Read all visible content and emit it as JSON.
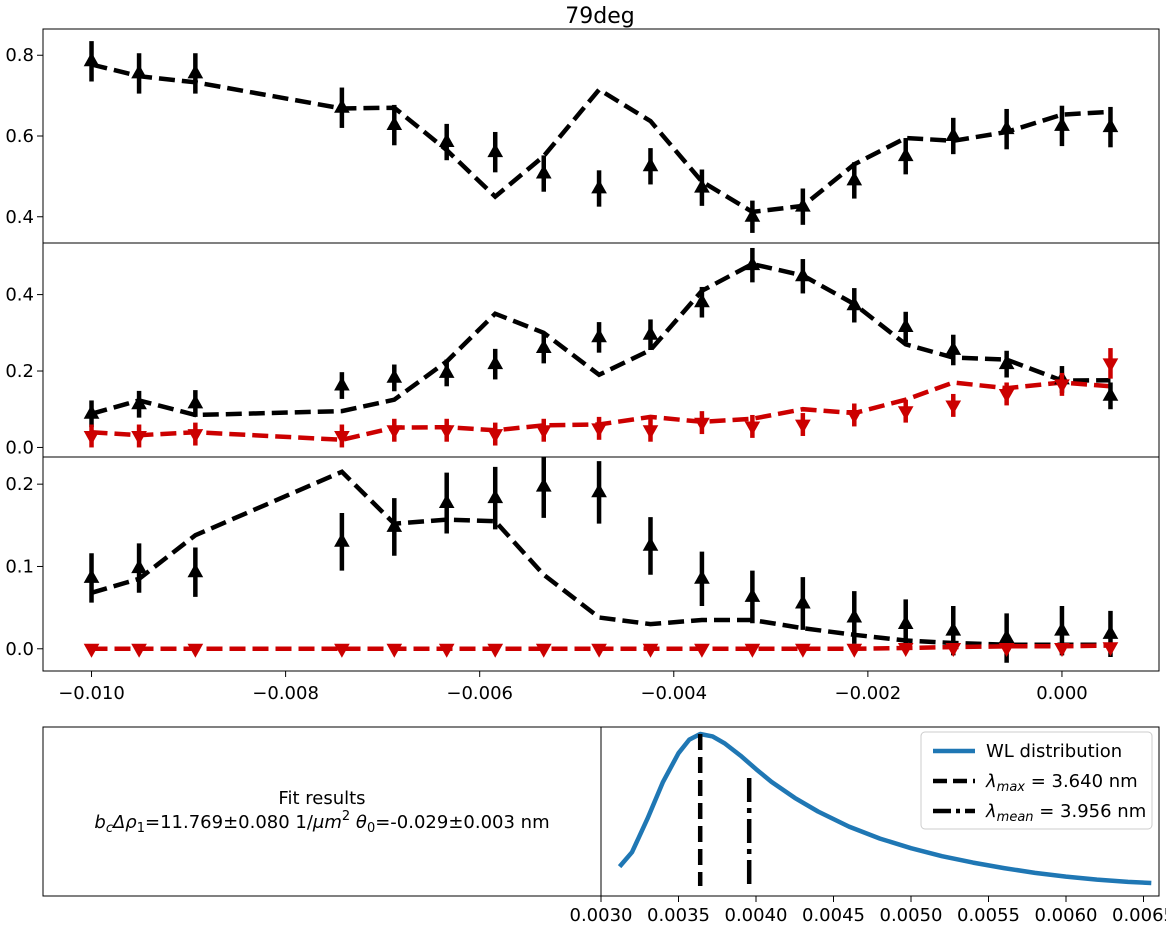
{
  "chart_data": [
    {
      "type": "line",
      "panel": "top",
      "title": "79deg",
      "xlim": [
        -0.0105,
        0.001
      ],
      "ylim": [
        0.335,
        0.865
      ],
      "yticks": [
        0.4,
        0.6,
        0.8
      ],
      "ytick_labels": [
        "0.4",
        "0.6",
        "0.8"
      ],
      "series": [
        {
          "style": "black-triangle-up-errorbar",
          "color": "#000000",
          "x": [
            -0.01,
            -0.00951,
            -0.00893,
            -0.00742,
            -0.00688,
            -0.00634,
            -0.00584,
            -0.00534,
            -0.00477,
            -0.00424,
            -0.00371,
            -0.00319,
            -0.00267,
            -0.00214,
            -0.00161,
            -0.00112,
            -0.00057,
            0.0,
            0.0005
          ],
          "y": [
            0.785,
            0.755,
            0.755,
            0.67,
            0.627,
            0.585,
            0.56,
            0.507,
            0.47,
            0.525,
            0.472,
            0.4,
            0.425,
            0.49,
            0.55,
            0.6,
            0.617,
            0.625,
            0.622
          ],
          "yerr": [
            0.05,
            0.05,
            0.05,
            0.05,
            0.05,
            0.045,
            0.05,
            0.045,
            0.045,
            0.045,
            0.045,
            0.04,
            0.045,
            0.045,
            0.045,
            0.045,
            0.05,
            0.05,
            0.05
          ]
        },
        {
          "style": "black-dashed-line",
          "color": "#000000",
          "x": [
            -0.01,
            -0.00951,
            -0.00893,
            -0.00742,
            -0.00688,
            -0.00634,
            -0.00584,
            -0.00534,
            -0.00477,
            -0.00424,
            -0.00371,
            -0.00319,
            -0.00267,
            -0.00214,
            -0.00161,
            -0.00112,
            -0.00057,
            0.0,
            0.0005
          ],
          "y": [
            0.777,
            0.748,
            0.733,
            0.668,
            0.67,
            0.565,
            0.45,
            0.55,
            0.715,
            0.637,
            0.487,
            0.412,
            0.427,
            0.53,
            0.595,
            0.588,
            0.61,
            0.653,
            0.66
          ]
        }
      ]
    },
    {
      "type": "line",
      "panel": "middle",
      "xlim": [
        -0.0105,
        0.001
      ],
      "ylim": [
        -0.025,
        0.535
      ],
      "yticks": [
        0.0,
        0.2,
        0.4
      ],
      "ytick_labels": [
        "0.0",
        "0.2",
        "0.4"
      ],
      "series": [
        {
          "style": "black-triangle-up-errorbar",
          "color": "#000000",
          "x": [
            -0.01,
            -0.00951,
            -0.00893,
            -0.00742,
            -0.00688,
            -0.00634,
            -0.00584,
            -0.00534,
            -0.00477,
            -0.00424,
            -0.00371,
            -0.00319,
            -0.00267,
            -0.00214,
            -0.00161,
            -0.00112,
            -0.00057,
            0.0,
            0.0005
          ],
          "y": [
            0.088,
            0.113,
            0.115,
            0.162,
            0.182,
            0.195,
            0.218,
            0.26,
            0.288,
            0.295,
            0.38,
            0.477,
            0.448,
            0.372,
            0.315,
            0.255,
            0.218,
            0.178,
            0.135
          ],
          "yerr": [
            0.035,
            0.035,
            0.035,
            0.035,
            0.035,
            0.035,
            0.04,
            0.04,
            0.04,
            0.04,
            0.04,
            0.045,
            0.045,
            0.045,
            0.04,
            0.04,
            0.035,
            0.035,
            0.035
          ]
        },
        {
          "style": "black-dashed-line",
          "color": "#000000",
          "x": [
            -0.01,
            -0.00951,
            -0.00893,
            -0.00742,
            -0.00688,
            -0.00634,
            -0.00584,
            -0.00534,
            -0.00477,
            -0.00424,
            -0.00371,
            -0.00319,
            -0.00267,
            -0.00214,
            -0.00161,
            -0.00112,
            -0.00057,
            0.0,
            0.0005
          ],
          "y": [
            0.088,
            0.123,
            0.085,
            0.095,
            0.125,
            0.225,
            0.35,
            0.3,
            0.19,
            0.255,
            0.41,
            0.48,
            0.45,
            0.375,
            0.27,
            0.235,
            0.23,
            0.175,
            0.176
          ]
        },
        {
          "style": "red-triangle-down-errorbar",
          "color": "#cc0000",
          "x": [
            -0.01,
            -0.00951,
            -0.00893,
            -0.00742,
            -0.00688,
            -0.00634,
            -0.00584,
            -0.00534,
            -0.00477,
            -0.00424,
            -0.00371,
            -0.00319,
            -0.00267,
            -0.00214,
            -0.00161,
            -0.00112,
            -0.00057,
            0.0,
            0.0005
          ],
          "y": [
            0.03,
            0.03,
            0.035,
            0.03,
            0.045,
            0.045,
            0.035,
            0.045,
            0.05,
            0.045,
            0.065,
            0.055,
            0.06,
            0.085,
            0.095,
            0.11,
            0.14,
            0.165,
            0.22
          ],
          "yerr": [
            0.03,
            0.03,
            0.03,
            0.03,
            0.03,
            0.03,
            0.03,
            0.03,
            0.03,
            0.03,
            0.03,
            0.03,
            0.03,
            0.03,
            0.03,
            0.03,
            0.03,
            0.03,
            0.04
          ]
        },
        {
          "style": "red-dashed-line",
          "color": "#cc0000",
          "x": [
            -0.01,
            -0.00951,
            -0.00893,
            -0.00742,
            -0.00688,
            -0.00634,
            -0.00584,
            -0.00534,
            -0.00477,
            -0.00424,
            -0.00371,
            -0.00319,
            -0.00267,
            -0.00214,
            -0.00161,
            -0.00112,
            -0.00057,
            0.0,
            0.0005
          ],
          "y": [
            0.04,
            0.032,
            0.04,
            0.02,
            0.052,
            0.053,
            0.045,
            0.058,
            0.06,
            0.08,
            0.067,
            0.075,
            0.1,
            0.09,
            0.125,
            0.17,
            0.155,
            0.17,
            0.16
          ]
        }
      ]
    },
    {
      "type": "line",
      "panel": "bottom",
      "xlim": [
        -0.0105,
        0.001
      ],
      "ylim": [
        -0.027,
        0.233
      ],
      "yticks": [
        0.0,
        0.1,
        0.2
      ],
      "ytick_labels": [
        "0.0",
        "0.1",
        "0.2"
      ],
      "xticks": [
        -0.01,
        -0.008,
        -0.006,
        -0.004,
        -0.002,
        0.0
      ],
      "xtick_labels": [
        "−0.010",
        "−0.008",
        "−0.006",
        "−0.004",
        "−0.002",
        "0.000"
      ],
      "series": [
        {
          "style": "black-triangle-up-errorbar",
          "color": "#000000",
          "x": [
            -0.01,
            -0.00951,
            -0.00893,
            -0.00742,
            -0.00688,
            -0.00634,
            -0.00584,
            -0.00534,
            -0.00477,
            -0.00424,
            -0.00371,
            -0.00319,
            -0.00267,
            -0.00214,
            -0.00161,
            -0.00112,
            -0.00057,
            0.0,
            0.0005
          ],
          "y": [
            0.086,
            0.098,
            0.093,
            0.13,
            0.148,
            0.177,
            0.183,
            0.197,
            0.19,
            0.125,
            0.085,
            0.063,
            0.055,
            0.038,
            0.03,
            0.022,
            0.013,
            0.022,
            0.018
          ],
          "yerr": [
            0.03,
            0.03,
            0.03,
            0.035,
            0.035,
            0.037,
            0.038,
            0.038,
            0.038,
            0.035,
            0.033,
            0.032,
            0.032,
            0.032,
            0.03,
            0.03,
            0.03,
            0.03,
            0.028
          ]
        },
        {
          "style": "black-dashed-line",
          "color": "#000000",
          "x": [
            -0.01,
            -0.00951,
            -0.00893,
            -0.00742,
            -0.00688,
            -0.00634,
            -0.00584,
            -0.00534,
            -0.00477,
            -0.00424,
            -0.00371,
            -0.00319,
            -0.00267,
            -0.00214,
            -0.00161,
            -0.00112,
            -0.00057,
            0.0,
            0.0005
          ],
          "y": [
            0.068,
            0.085,
            0.138,
            0.215,
            0.152,
            0.157,
            0.155,
            0.09,
            0.038,
            0.03,
            0.035,
            0.035,
            0.025,
            0.017,
            0.01,
            0.007,
            0.005,
            0.005,
            0.005
          ]
        },
        {
          "style": "red-triangle-down-errorbar",
          "color": "#cc0000",
          "x": [
            -0.01,
            -0.00951,
            -0.00893,
            -0.00742,
            -0.00688,
            -0.00634,
            -0.00584,
            -0.00534,
            -0.00477,
            -0.00424,
            -0.00371,
            -0.00319,
            -0.00267,
            -0.00214,
            -0.00161,
            -0.00112,
            -0.00057,
            0.0,
            0.0005
          ],
          "y": [
            0.0,
            0.0,
            0.0,
            0.0,
            0.0,
            0.0,
            0.0,
            0.0,
            0.0,
            0.0,
            0.0,
            0.0,
            0.0,
            0.0,
            0.001,
            0.001,
            0.001,
            0.001,
            0.002
          ],
          "yerr": [
            0.005,
            0.005,
            0.005,
            0.005,
            0.005,
            0.005,
            0.005,
            0.005,
            0.005,
            0.005,
            0.005,
            0.005,
            0.005,
            0.005,
            0.005,
            0.005,
            0.005,
            0.005,
            0.005
          ]
        },
        {
          "style": "red-dashed-line",
          "color": "#cc0000",
          "x": [
            -0.01,
            -0.00951,
            -0.00893,
            -0.00742,
            -0.00688,
            -0.00634,
            -0.00584,
            -0.00534,
            -0.00477,
            -0.00424,
            -0.00371,
            -0.00319,
            -0.00267,
            -0.00214,
            -0.00161,
            -0.00112,
            -0.00057,
            0.0,
            0.0005
          ],
          "y": [
            0.0,
            0.0,
            0.0,
            0.0,
            0.0,
            0.0,
            0.0,
            0.0,
            0.0,
            0.0,
            0.0,
            0.0,
            0.0,
            0.0,
            0.001,
            0.002,
            0.003,
            0.003,
            0.004
          ]
        }
      ]
    },
    {
      "type": "line",
      "panel": "wl-distribution",
      "xlim": [
        0.003,
        0.0066
      ],
      "ylim": [
        0.0,
        1.0
      ],
      "xticks": [
        0.003,
        0.0035,
        0.004,
        0.0045,
        0.005,
        0.0055,
        0.006,
        0.0065
      ],
      "xtick_labels": [
        "0.0030",
        "0.0035",
        "0.0040",
        "0.0045",
        "0.0050",
        "0.0055",
        "0.0060",
        "0.0065"
      ],
      "legend_position": "top-right",
      "legend": [
        {
          "label": "WL distribution",
          "style": "solid",
          "color": "#1f77b4"
        },
        {
          "label_main": "λ",
          "label_sub": "max",
          "label_rest": " = 3.640 nm",
          "style": "dashed",
          "color": "#000000"
        },
        {
          "label_main": "λ",
          "label_sub": "mean",
          "label_rest": " = 3.956 nm",
          "style": "dashdot",
          "color": "#000000"
        }
      ],
      "series": [
        {
          "name": "WL distribution",
          "color": "#1f77b4",
          "x": [
            0.00312,
            0.0032,
            0.0033,
            0.0034,
            0.0035,
            0.00357,
            0.00364,
            0.00372,
            0.0038,
            0.0039,
            0.004,
            0.0041,
            0.00425,
            0.0044,
            0.0046,
            0.0048,
            0.005,
            0.0052,
            0.0054,
            0.0056,
            0.0058,
            0.006,
            0.0062,
            0.0064,
            0.00655
          ],
          "y": [
            0.17,
            0.26,
            0.47,
            0.7,
            0.88,
            0.965,
            1.0,
            0.985,
            0.94,
            0.865,
            0.78,
            0.7,
            0.6,
            0.515,
            0.42,
            0.345,
            0.285,
            0.235,
            0.195,
            0.16,
            0.13,
            0.107,
            0.088,
            0.074,
            0.067
          ]
        }
      ],
      "vlines": [
        {
          "x": 0.00364,
          "style": "dashed",
          "color": "#000000"
        },
        {
          "x": 0.003956,
          "style": "dashdot",
          "color": "#000000"
        }
      ]
    }
  ],
  "fit_results": {
    "heading": "Fit results",
    "b_main": "b",
    "b_sub": "c",
    "drho_main": "Δρ",
    "drho_sub": "1",
    "value_text": "=11.769±0.080 1/",
    "mu_text": "μm",
    "mu_sup": "2",
    "theta_main": " θ",
    "theta_sub": "0",
    "theta_value": "=-0.029±0.003 nm"
  }
}
